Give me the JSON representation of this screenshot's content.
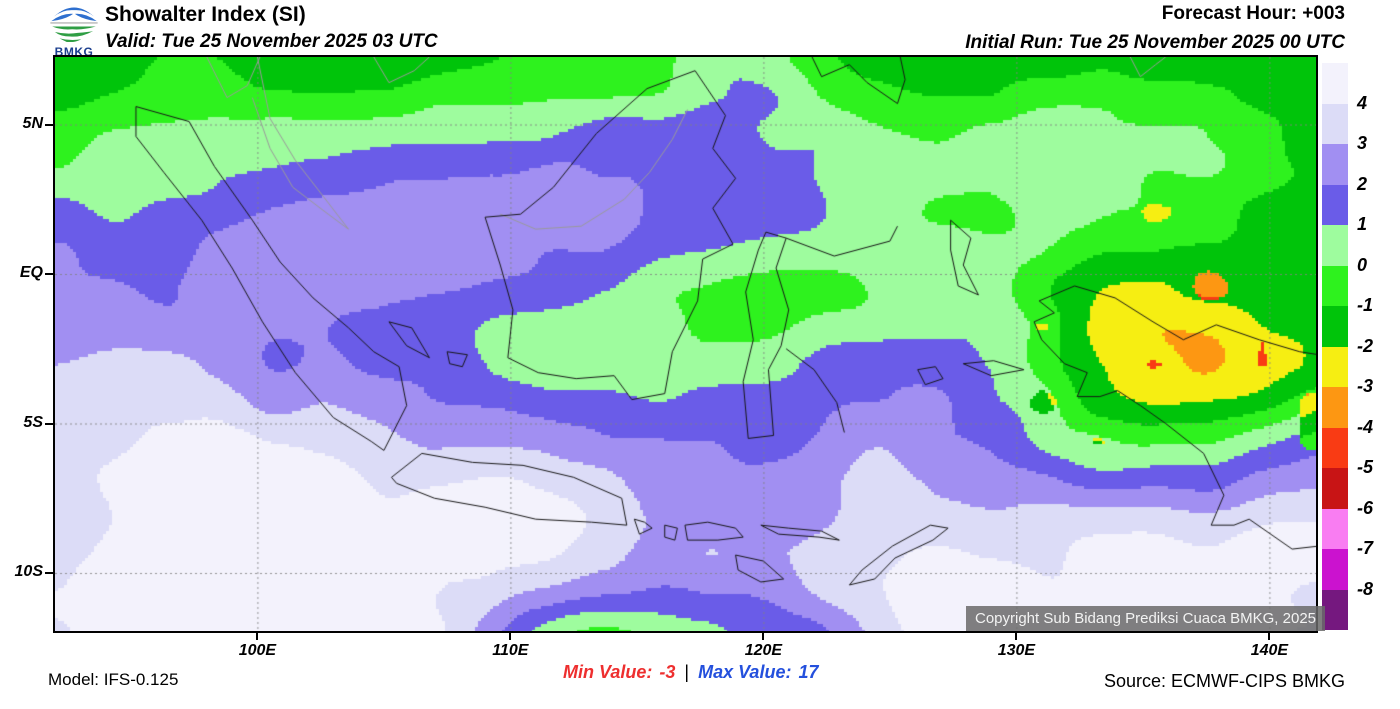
{
  "header": {
    "logo_label": "BMKG",
    "title": "Showalter Index (SI)",
    "valid": "Valid: Tue 25 November 2025 03 UTC",
    "forecast_hour": "Forecast Hour: +003",
    "initial_run": "Initial Run: Tue 25 November 2025 00 UTC"
  },
  "map": {
    "copyright": "Copyright Sub Bidang Prediksi Cuaca BMKG, 2025",
    "lat_ticks": [
      {
        "label": "5N",
        "lat": 5
      },
      {
        "label": "EQ",
        "lat": 0
      },
      {
        "label": "5S",
        "lat": -5
      },
      {
        "label": "10S",
        "lat": -10
      }
    ],
    "lon_ticks": [
      {
        "label": "100E",
        "lon": 100
      },
      {
        "label": "110E",
        "lon": 110
      },
      {
        "label": "120E",
        "lon": 120
      },
      {
        "label": "130E",
        "lon": 130
      },
      {
        "label": "140E",
        "lon": 140
      }
    ]
  },
  "colorbar": {
    "boundary_labels": [
      "4",
      "3",
      "2",
      "1",
      "0",
      "-1",
      "-2",
      "-3",
      "-4",
      "-5",
      "-6",
      "-7",
      "-8"
    ],
    "colors": [
      "#f3f2fc",
      "#dcdcf7",
      "#a18ff2",
      "#6a5ce8",
      "#9efc9e",
      "#2ef21e",
      "#00c40a",
      "#f6ee12",
      "#fd9712",
      "#f93b14",
      "#c81415",
      "#f97df2",
      "#cb12cf",
      "#75187f"
    ]
  },
  "footer": {
    "model": "Model: IFS-0.125",
    "min_label": "Min Value:",
    "min_value": "-3",
    "separator": "|",
    "max_label": "Max Value:",
    "max_value": "17",
    "source": "Source: ECMWF-CIPS BMKG",
    "min_color": "#ee2f2f",
    "max_color": "#2450dd"
  },
  "chart_data": {
    "type": "heatmap",
    "title": "Showalter Index (SI)",
    "projection": "lat-lon map of Indonesia",
    "lon_range": [
      92,
      142
    ],
    "lat_range": [
      -12,
      7.3
    ],
    "legend_boundaries": [
      4,
      3,
      2,
      1,
      0,
      -1,
      -2,
      -3,
      -4,
      -5,
      -6,
      -7,
      -8
    ],
    "legend_colors": [
      "#f3f2fc",
      "#dcdcf7",
      "#a18ff2",
      "#6a5ce8",
      "#9efc9e",
      "#2ef21e",
      "#00c40a",
      "#f6ee12",
      "#fd9712",
      "#f93b14",
      "#c81415",
      "#f97df2",
      "#cb12cf",
      "#75187f"
    ],
    "min_value": -3,
    "max_value": 17,
    "grid": "dashed graticule every 5 deg lat / 10 deg lon"
  }
}
